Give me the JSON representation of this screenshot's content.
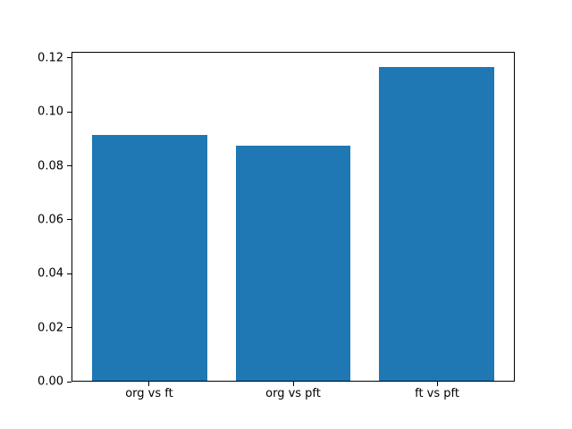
{
  "chart_data": {
    "type": "bar",
    "categories": [
      "org vs ft",
      "org vs pft",
      "ft vs pft"
    ],
    "values": [
      0.0918,
      0.0878,
      0.117
    ],
    "title": "",
    "xlabel": "",
    "ylabel": "",
    "ylim": [
      0,
      0.1223
    ],
    "xlim": [
      -0.54,
      2.54
    ],
    "yticks": [
      0.0,
      0.02,
      0.04,
      0.06,
      0.08,
      0.1,
      0.12
    ],
    "ytick_decimals": 2,
    "bar_width_fraction": 0.8,
    "bar_color": "#1f77b4",
    "spine_color": "#000000",
    "background_color": "#ffffff",
    "grid": false,
    "legend": null
  }
}
